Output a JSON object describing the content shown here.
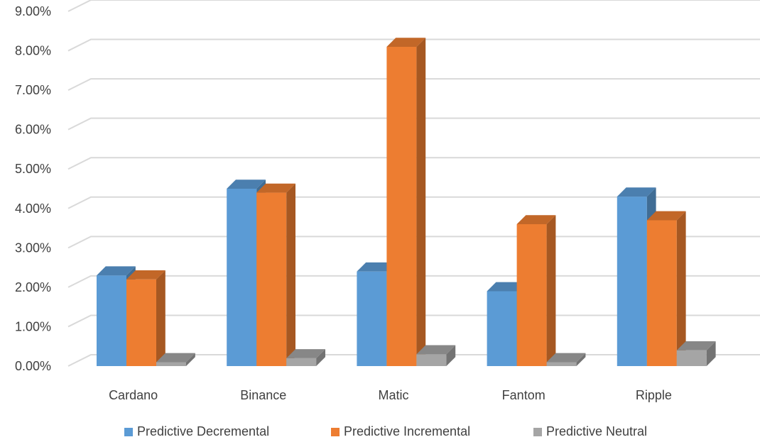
{
  "chart_data": {
    "type": "bar",
    "title": "",
    "xlabel": "",
    "ylabel": "",
    "categories": [
      "Cardano",
      "Binance",
      "Matic",
      "Fantom",
      "Ripple"
    ],
    "ylim": [
      0,
      9
    ],
    "yticks": [
      "0.00%",
      "1.00%",
      "2.00%",
      "3.00%",
      "4.00%",
      "5.00%",
      "6.00%",
      "7.00%",
      "8.00%",
      "9.00%"
    ],
    "grid": true,
    "legend_position": "bottom",
    "three_d": true,
    "series": [
      {
        "name": "Predictive Decremental",
        "color": "#5b9bd5",
        "values": [
          2.3,
          4.5,
          2.4,
          1.9,
          4.3
        ]
      },
      {
        "name": "Predictive Incremental",
        "color": "#ed7d31",
        "values": [
          2.2,
          4.4,
          8.1,
          3.6,
          3.7
        ]
      },
      {
        "name": "Predictive Neutral",
        "color": "#a5a5a5",
        "values": [
          0.1,
          0.2,
          0.3,
          0.1,
          0.4
        ]
      }
    ]
  }
}
